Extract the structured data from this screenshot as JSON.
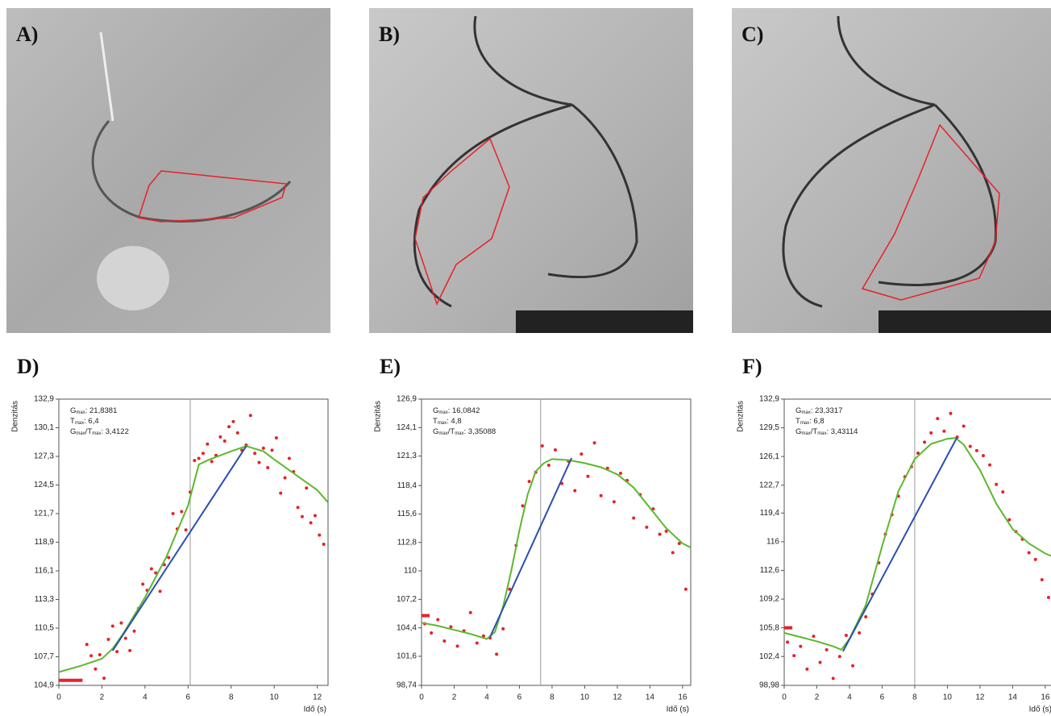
{
  "panels": [
    {
      "label": "A)"
    },
    {
      "label": "B)"
    },
    {
      "label": "C)"
    }
  ],
  "chart_data": [
    {
      "type": "scatter",
      "title": "D)",
      "y_label": "Denzitás",
      "x_label": "Idő (s)",
      "xlim": [
        0,
        12.5
      ],
      "xticks": [
        0,
        2,
        4,
        6,
        8,
        10,
        12
      ],
      "ylim": [
        104.9,
        132.9
      ],
      "yticks": [
        {
          "value": 104.9,
          "label": "104,9"
        },
        {
          "value": 107.7,
          "label": "107,7"
        },
        {
          "value": 110.5,
          "label": "110,5"
        },
        {
          "value": 113.3,
          "label": "113,3"
        },
        {
          "value": 116.1,
          "label": "116,1"
        },
        {
          "value": 118.9,
          "label": "118,9"
        },
        {
          "value": 121.7,
          "label": "121,7"
        },
        {
          "value": 124.5,
          "label": "124,5"
        },
        {
          "value": 127.3,
          "label": "127,3"
        },
        {
          "value": 130.1,
          "label": "130,1"
        },
        {
          "value": 132.9,
          "label": "132,9"
        }
      ],
      "reference_x": 6.1,
      "annotations": [
        [
          "G",
          "max",
          ": 21,8381"
        ],
        [
          "T",
          "max",
          ": 6,4"
        ],
        [
          "G",
          "max",
          "/T",
          "max",
          ": 3,4122"
        ]
      ],
      "series": [
        {
          "style": "markers",
          "color": "#e8202a",
          "x": [
            1.3,
            1.5,
            1.7,
            1.9,
            2.1,
            2.3,
            2.5,
            2.7,
            2.9,
            3.1,
            3.3,
            3.5,
            3.7,
            3.9,
            4.1,
            4.3,
            4.5,
            4.7,
            4.9,
            5.1,
            5.3,
            5.5,
            5.7,
            5.9,
            6.1,
            6.3,
            6.5,
            6.7,
            6.9,
            7.1,
            7.3,
            7.5,
            7.7,
            7.9,
            8.1,
            8.3,
            8.5,
            8.7,
            8.9,
            9.1,
            9.3,
            9.5,
            9.7,
            9.9,
            10.1,
            10.3,
            10.5,
            10.7,
            10.9,
            11.1,
            11.3,
            11.5,
            11.7,
            11.9,
            12.1,
            12.3
          ],
          "values": [
            108.9,
            107.8,
            106.5,
            107.9,
            105.6,
            109.4,
            110.7,
            108.2,
            111,
            109.5,
            108.3,
            110.2,
            112.4,
            114.8,
            114.2,
            116.3,
            115.9,
            114.1,
            116.7,
            117.4,
            121.7,
            120.2,
            121.9,
            120.1,
            123.8,
            126.9,
            127.1,
            127.6,
            128.5,
            126.8,
            127.4,
            129.2,
            128.8,
            130.2,
            130.7,
            129.6,
            127.9,
            128.4,
            131.3,
            127.6,
            126.7,
            128.1,
            126.2,
            127.9,
            129.1,
            123.7,
            125.2,
            127.1,
            125.8,
            122.3,
            121.4,
            124.2,
            120.8,
            121.5,
            119.6,
            118.7
          ]
        },
        {
          "style": "line",
          "color": "#5cb82e",
          "x": [
            0,
            1,
            2,
            2.5,
            3,
            4,
            5,
            6,
            6.5,
            7,
            8,
            8.7,
            9.5,
            10,
            11,
            12,
            12.5
          ],
          "values": [
            106.2,
            106.8,
            107.5,
            108.5,
            110,
            113.5,
            117.5,
            122.5,
            126.5,
            127,
            127.8,
            128.3,
            127.8,
            127,
            125.5,
            124,
            122.8
          ]
        },
        {
          "style": "line",
          "color": "#2b4fb0",
          "x": [
            2.5,
            8.7
          ],
          "values": [
            108.3,
            128.3
          ]
        },
        {
          "style": "thick",
          "color": "#e8202a",
          "x": [
            0,
            1.1
          ],
          "values": [
            105.4,
            105.4
          ]
        }
      ]
    },
    {
      "type": "scatter",
      "title": "E)",
      "y_label": "Denzitás",
      "x_label": "Idő (s)",
      "xlim": [
        0,
        16.5
      ],
      "xticks": [
        0,
        2,
        4,
        6,
        8,
        10,
        12,
        14,
        16
      ],
      "ylim": [
        98.74,
        126.9
      ],
      "yticks": [
        {
          "value": 98.74,
          "label": "98,74"
        },
        {
          "value": 101.6,
          "label": "101,6"
        },
        {
          "value": 104.4,
          "label": "104,4"
        },
        {
          "value": 107.2,
          "label": "107,2"
        },
        110,
        {
          "value": 112.8,
          "label": "112,8"
        },
        {
          "value": 115.6,
          "label": "115,6"
        },
        {
          "value": 118.4,
          "label": "118,4"
        },
        {
          "value": 121.3,
          "label": "121,3"
        },
        {
          "value": 124.1,
          "label": "124,1"
        },
        {
          "value": 126.9,
          "label": "126,9"
        }
      ],
      "reference_x": 7.3,
      "annotations": [
        [
          "G",
          "max",
          ": 16,0842"
        ],
        [
          "T",
          "max",
          ": 4,8"
        ],
        [
          "G",
          "max",
          "/T",
          "max",
          ": 3,35088"
        ]
      ],
      "series": [
        {
          "style": "markers",
          "color": "#e8202a",
          "x": [
            0.2,
            0.6,
            1,
            1.4,
            1.8,
            2.2,
            2.6,
            3,
            3.4,
            3.8,
            4.2,
            4.6,
            5,
            5.4,
            5.8,
            6.2,
            6.6,
            7,
            7.4,
            7.8,
            8.2,
            8.6,
            9,
            9.4,
            9.8,
            10.2,
            10.6,
            11,
            11.4,
            11.8,
            12.2,
            12.6,
            13,
            13.4,
            13.8,
            14.2,
            14.6,
            15,
            15.4,
            15.8,
            16.2
          ],
          "values": [
            104.8,
            103.9,
            105.2,
            103.1,
            104.5,
            102.6,
            104.1,
            105.9,
            102.9,
            103.6,
            103.4,
            101.8,
            104.3,
            108.2,
            112.5,
            116.4,
            118.8,
            119.7,
            122.3,
            120.4,
            121.9,
            118.6,
            120.8,
            117.9,
            121.5,
            119.3,
            122.6,
            117.4,
            120.1,
            116.8,
            119.6,
            118.9,
            115.2,
            117.5,
            114.3,
            116.1,
            113.6,
            113.9,
            111.8,
            112.7,
            108.2
          ]
        },
        {
          "style": "line",
          "color": "#5cb82e",
          "x": [
            0,
            1,
            2,
            3,
            4,
            4.5,
            5,
            5.5,
            6,
            6.5,
            7,
            7.5,
            8,
            9,
            10,
            11,
            12,
            13,
            14,
            15,
            16,
            16.5
          ],
          "values": [
            104.9,
            104.6,
            104.2,
            103.8,
            103.3,
            104,
            106.5,
            110,
            114,
            117.5,
            119.8,
            120.6,
            121,
            120.9,
            120.6,
            120.2,
            119.5,
            118.2,
            116.2,
            114.2,
            112.7,
            112.3
          ]
        },
        {
          "style": "line",
          "color": "#2b4fb0",
          "x": [
            4.2,
            9.2
          ],
          "values": [
            103.5,
            121.1
          ]
        },
        {
          "style": "thick",
          "color": "#e8202a",
          "x": [
            0,
            0.5
          ],
          "values": [
            105.6,
            105.6
          ]
        }
      ]
    },
    {
      "type": "scatter",
      "title": "F)",
      "y_label": "Denzitás",
      "x_label": "Idő (s)",
      "xlim": [
        0,
        16.5
      ],
      "xticks": [
        0,
        2,
        4,
        6,
        8,
        10,
        12,
        14,
        16
      ],
      "ylim": [
        98.98,
        132.9
      ],
      "yticks": [
        {
          "value": 98.98,
          "label": "98,98"
        },
        {
          "value": 102.4,
          "label": "102,4"
        },
        {
          "value": 105.8,
          "label": "105,8"
        },
        {
          "value": 109.2,
          "label": "109,2"
        },
        {
          "value": 112.6,
          "label": "112,6"
        },
        116,
        {
          "value": 119.4,
          "label": "119,4"
        },
        {
          "value": 122.7,
          "label": "122,7"
        },
        {
          "value": 126.1,
          "label": "126,1"
        },
        {
          "value": 129.5,
          "label": "129,5"
        },
        {
          "value": 132.9,
          "label": "132,9"
        }
      ],
      "reference_x": 8,
      "annotations": [
        [
          "G",
          "max",
          ": 23,3317"
        ],
        [
          "T",
          "max",
          ": 6,8"
        ],
        [
          "G",
          "max",
          "/T",
          "max",
          ": 3,43114"
        ]
      ],
      "series": [
        {
          "style": "markers",
          "color": "#e8202a",
          "x": [
            0.2,
            0.6,
            1,
            1.4,
            1.8,
            2.2,
            2.6,
            3,
            3.4,
            3.8,
            4.2,
            4.6,
            5,
            5.4,
            5.8,
            6.2,
            6.6,
            7,
            7.4,
            7.8,
            8.2,
            8.6,
            9,
            9.4,
            9.8,
            10.2,
            10.6,
            11,
            11.4,
            11.8,
            12.2,
            12.6,
            13,
            13.4,
            13.8,
            14.2,
            14.6,
            15,
            15.4,
            15.8,
            16.2
          ],
          "values": [
            104.1,
            102.5,
            103.6,
            100.9,
            104.8,
            101.7,
            103.2,
            99.8,
            102.4,
            104.9,
            101.3,
            105.2,
            107.1,
            109.8,
            113.5,
            116.9,
            119.2,
            121.4,
            123.7,
            124.9,
            126.5,
            127.8,
            128.9,
            130.6,
            129.1,
            131.2,
            128.4,
            129.7,
            127.3,
            126.8,
            126.2,
            125.1,
            122.8,
            121.9,
            118.6,
            117.2,
            116.3,
            114.7,
            113.9,
            111.5,
            109.4
          ]
        },
        {
          "style": "line",
          "color": "#5cb82e",
          "x": [
            0,
            1,
            2,
            3,
            3.5,
            4,
            5,
            6,
            7,
            8,
            9,
            10,
            10.5,
            11,
            12,
            13,
            14,
            15,
            16,
            16.5
          ],
          "values": [
            105.2,
            104.7,
            104.2,
            103.6,
            103.2,
            104.5,
            108.5,
            115.5,
            122,
            125.8,
            127.6,
            128.2,
            128.3,
            127.5,
            124.5,
            120.5,
            117.5,
            115.8,
            114.6,
            114.2
          ]
        },
        {
          "style": "line",
          "color": "#2b4fb0",
          "x": [
            3.6,
            10.6
          ],
          "values": [
            103,
            128.4
          ]
        },
        {
          "style": "thick",
          "color": "#e8202a",
          "x": [
            0,
            0.5
          ],
          "values": [
            105.8,
            105.8
          ]
        }
      ]
    }
  ]
}
